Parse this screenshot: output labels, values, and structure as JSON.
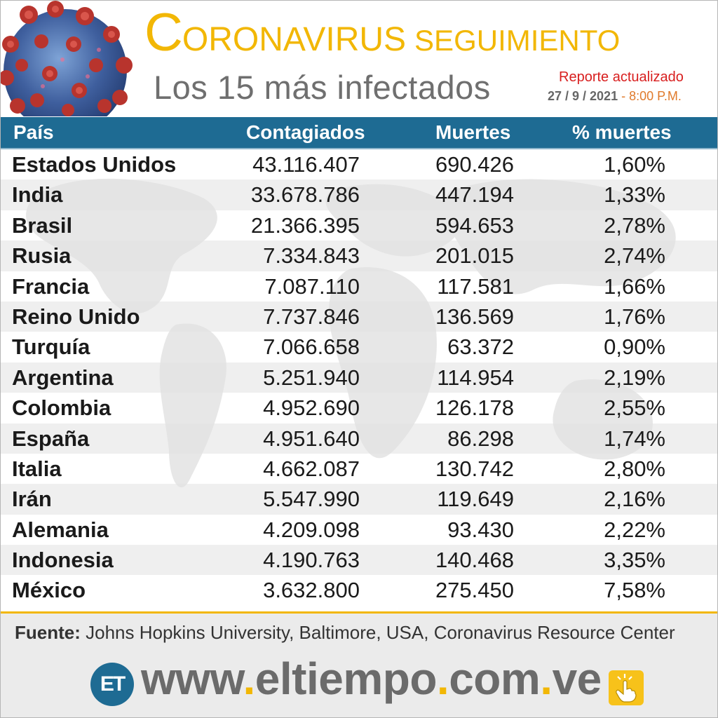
{
  "header": {
    "title_initial": "C",
    "title_rest": "ORONAVIRUS",
    "title_sub": "SEGUIMIENTO",
    "subtitle": "Los 15 más infectados",
    "report_label": "Reporte actualizado",
    "report_date": "27  / 9 / 2021",
    "report_separator": "-",
    "report_time": "8:00 P.M."
  },
  "table": {
    "columns": {
      "country": "País",
      "cases": "Contagiados",
      "deaths": "Muertes",
      "pct": "% muertes"
    },
    "rows": [
      {
        "country": "Estados Unidos",
        "cases": "43.116.407",
        "deaths": "690.426",
        "pct": "1,60%"
      },
      {
        "country": "India",
        "cases": "33.678.786",
        "deaths": "447.194",
        "pct": "1,33%"
      },
      {
        "country": "Brasil",
        "cases": "21.366.395",
        "deaths": "594.653",
        "pct": "2,78%"
      },
      {
        "country": "Rusia",
        "cases": "7.334.843",
        "deaths": "201.015",
        "pct": "2,74%"
      },
      {
        "country": "Francia",
        "cases": "7.087.110",
        "deaths": "117.581",
        "pct": "1,66%"
      },
      {
        "country": "Reino Unido",
        "cases": "7.737.846",
        "deaths": "136.569",
        "pct": "1,76%"
      },
      {
        "country": "Turquía",
        "cases": "7.066.658",
        "deaths": "63.372",
        "pct": "0,90%"
      },
      {
        "country": "Argentina",
        "cases": "5.251.940",
        "deaths": "114.954",
        "pct": "2,19%"
      },
      {
        "country": "Colombia",
        "cases": "4.952.690",
        "deaths": "126.178",
        "pct": "2,55%"
      },
      {
        "country": "España",
        "cases": "4.951.640",
        "deaths": "86.298",
        "pct": "1,74%"
      },
      {
        "country": "Italia",
        "cases": "4.662.087",
        "deaths": "130.742",
        "pct": "2,80%"
      },
      {
        "country": "Irán",
        "cases": "5.547.990",
        "deaths": "119.649",
        "pct": "2,16%"
      },
      {
        "country": "Alemania",
        "cases": "4.209.098",
        "deaths": "93.430",
        "pct": "2,22%"
      },
      {
        "country": "Indonesia",
        "cases": "4.190.763",
        "deaths": "140.468",
        "pct": "3,35%"
      },
      {
        "country": "México",
        "cases": "3.632.800",
        "deaths": "275.450",
        "pct": "7,58%"
      }
    ]
  },
  "footer": {
    "source_label": "Fuente:",
    "source_text": " Johns Hopkins University, Baltimore, USA, Coronavirus Resource Center",
    "logo_text": "ET",
    "website_parts": [
      "www",
      ".",
      "eltiempo",
      ".",
      "com",
      ".",
      "ve"
    ]
  },
  "colors": {
    "accent_yellow": "#f2b705",
    "header_blue": "#1e6b93",
    "report_red": "#d81e1e",
    "text_gray": "#6f6f6f"
  },
  "icons": {
    "virus": "coronavirus-illustration",
    "logo": "et-logo-icon",
    "click": "click-hand-icon"
  }
}
